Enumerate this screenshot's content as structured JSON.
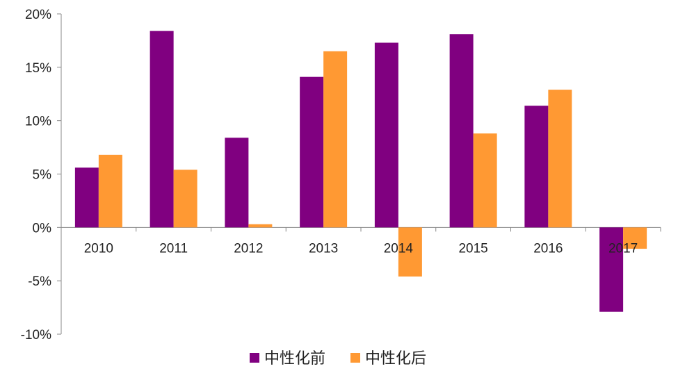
{
  "chart_data": {
    "type": "bar",
    "categories": [
      "2010",
      "2011",
      "2012",
      "2013",
      "2014",
      "2015",
      "2016",
      "2017"
    ],
    "series": [
      {
        "name": "中性化前",
        "color": "#800080",
        "values": [
          5.6,
          18.4,
          8.4,
          14.1,
          17.3,
          18.1,
          11.4,
          -7.9
        ]
      },
      {
        "name": "中性化后",
        "color": "#ff9933",
        "values": [
          6.8,
          5.4,
          0.3,
          16.5,
          -4.6,
          8.8,
          12.9,
          -2.0
        ]
      }
    ],
    "yticks": [
      "20%",
      "15%",
      "10%",
      "5%",
      "0%",
      "-5%",
      "-10%"
    ],
    "ytick_values": [
      20,
      15,
      10,
      5,
      0,
      -5,
      -10
    ],
    "ylim": [
      -10,
      20
    ],
    "grid": false,
    "legend_position": "bottom-center",
    "title": "",
    "xlabel": "",
    "ylabel": ""
  }
}
